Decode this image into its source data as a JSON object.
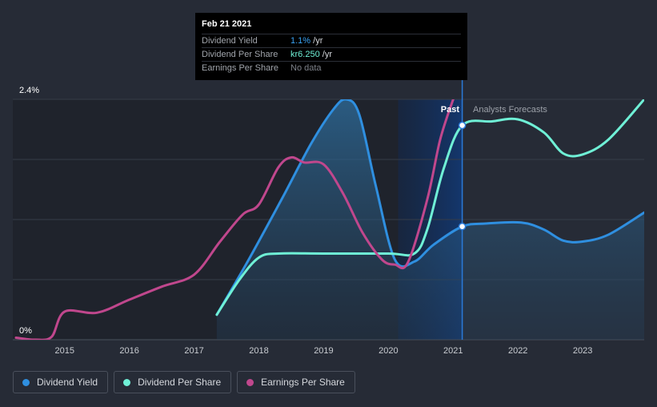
{
  "tooltip": {
    "date": "Feb 21 2021",
    "rows": [
      {
        "label": "Dividend Yield",
        "value": "1.1%",
        "unit": " /yr",
        "color": "#3aa3f4"
      },
      {
        "label": "Dividend Per Share",
        "value": "kr6.250",
        "unit": " /yr",
        "color": "#6ff0d6"
      },
      {
        "label": "Earnings Per Share",
        "value": "No data",
        "unit": "",
        "color": "#7d8189"
      }
    ]
  },
  "labels": {
    "past": "Past",
    "forecast": "Analysts Forecasts"
  },
  "legend": [
    {
      "label": "Dividend Yield",
      "color": "#2f8fe0"
    },
    {
      "label": "Dividend Per Share",
      "color": "#6ff0d6"
    },
    {
      "label": "Earnings Per Share",
      "color": "#c0478d"
    }
  ],
  "chart_data": {
    "type": "line",
    "ylim": [
      0,
      2.4
    ],
    "ytick_labels": [
      "0%",
      "2.4%"
    ],
    "xlim": [
      2014.2,
      2023.95
    ],
    "xticks": [
      2015,
      2016,
      2017,
      2018,
      2019,
      2020,
      2021,
      2022,
      2023
    ],
    "past_start": 2020.15,
    "divider": 2021.14,
    "grid": true,
    "series": [
      {
        "name": "Dividend Yield",
        "color": "#2f8fe0",
        "area": true,
        "points": [
          [
            2017.35,
            0.25
          ],
          [
            2017.8,
            0.75
          ],
          [
            2018.35,
            1.4
          ],
          [
            2018.8,
            1.95
          ],
          [
            2019.15,
            2.3
          ],
          [
            2019.35,
            2.4
          ],
          [
            2019.55,
            2.25
          ],
          [
            2019.8,
            1.55
          ],
          [
            2020.1,
            0.8
          ],
          [
            2020.4,
            0.78
          ],
          [
            2020.7,
            0.95
          ],
          [
            2021.14,
            1.13
          ],
          [
            2021.5,
            1.16
          ],
          [
            2022.05,
            1.17
          ],
          [
            2022.4,
            1.1
          ],
          [
            2022.7,
            0.99
          ],
          [
            2023.0,
            0.98
          ],
          [
            2023.4,
            1.05
          ],
          [
            2023.95,
            1.27
          ]
        ]
      },
      {
        "name": "Dividend Per Share",
        "color": "#6ff0d6",
        "area": false,
        "points": [
          [
            2017.35,
            0.25
          ],
          [
            2017.7,
            0.6
          ],
          [
            2018.0,
            0.82
          ],
          [
            2018.3,
            0.86
          ],
          [
            2019.0,
            0.86
          ],
          [
            2020.0,
            0.86
          ],
          [
            2020.4,
            0.86
          ],
          [
            2020.6,
            1.1
          ],
          [
            2020.85,
            1.7
          ],
          [
            2021.14,
            2.14
          ],
          [
            2021.6,
            2.18
          ],
          [
            2022.0,
            2.2
          ],
          [
            2022.4,
            2.07
          ],
          [
            2022.7,
            1.86
          ],
          [
            2023.0,
            1.85
          ],
          [
            2023.4,
            2.0
          ],
          [
            2023.95,
            2.4
          ]
        ]
      },
      {
        "name": "Earnings Per Share",
        "color": "#c0478d",
        "area": false,
        "points": [
          [
            2014.25,
            0.02
          ],
          [
            2014.55,
            0.0
          ],
          [
            2014.8,
            0.03
          ],
          [
            2015.0,
            0.28
          ],
          [
            2015.5,
            0.27
          ],
          [
            2016.0,
            0.4
          ],
          [
            2016.5,
            0.53
          ],
          [
            2017.0,
            0.65
          ],
          [
            2017.4,
            0.98
          ],
          [
            2017.75,
            1.25
          ],
          [
            2018.0,
            1.35
          ],
          [
            2018.3,
            1.72
          ],
          [
            2018.5,
            1.82
          ],
          [
            2018.7,
            1.77
          ],
          [
            2019.0,
            1.75
          ],
          [
            2019.3,
            1.46
          ],
          [
            2019.6,
            1.07
          ],
          [
            2019.9,
            0.8
          ],
          [
            2020.1,
            0.75
          ],
          [
            2020.3,
            0.77
          ],
          [
            2020.6,
            1.4
          ],
          [
            2020.8,
            2.0
          ],
          [
            2021.0,
            2.4
          ]
        ]
      }
    ],
    "markers": [
      {
        "series": "Dividend Per Share",
        "x": 2021.14,
        "y": 2.14
      },
      {
        "series": "Dividend Yield",
        "x": 2021.14,
        "y": 1.13
      }
    ]
  }
}
